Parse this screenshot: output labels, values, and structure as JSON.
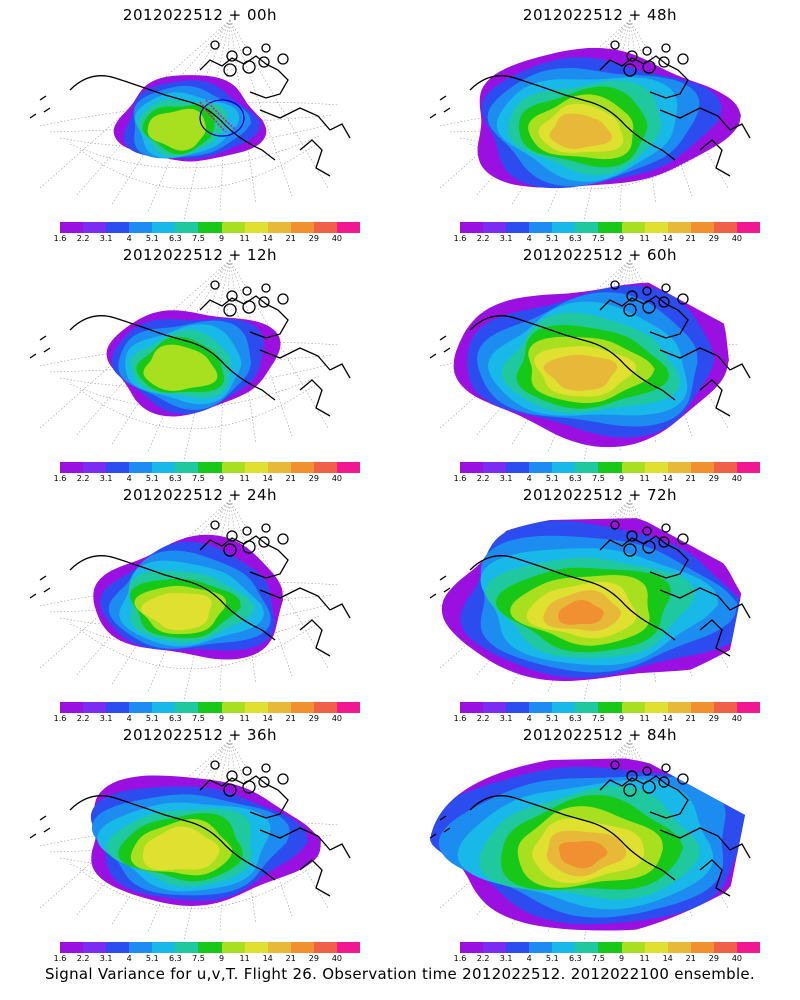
{
  "panels": [
    {
      "title": "2012022512 + 00h"
    },
    {
      "title": "2012022512 + 48h"
    },
    {
      "title": "2012022512 + 12h"
    },
    {
      "title": "2012022512 + 60h"
    },
    {
      "title": "2012022512 + 24h"
    },
    {
      "title": "2012022512 + 72h"
    },
    {
      "title": "2012022512 + 36h"
    },
    {
      "title": "2012022512 + 84h"
    }
  ],
  "colorbar": {
    "labels": [
      "1.6",
      "2.2",
      "3.1",
      "4",
      "5.1",
      "6.3",
      "7.5",
      "9",
      "11",
      "14",
      "21",
      "29",
      "40"
    ],
    "colors": [
      "#9a10e0",
      "#7a2cf0",
      "#2c4cf0",
      "#1d8cf0",
      "#18b8e8",
      "#20c8a0",
      "#18c818",
      "#a8e020",
      "#e0e030",
      "#e8b838",
      "#f09030",
      "#f06048",
      "#f01890"
    ]
  },
  "caption": "Signal Variance for u,v,T. Flight 26. Observation time 2012022512. 2012022100 ensemble."
}
